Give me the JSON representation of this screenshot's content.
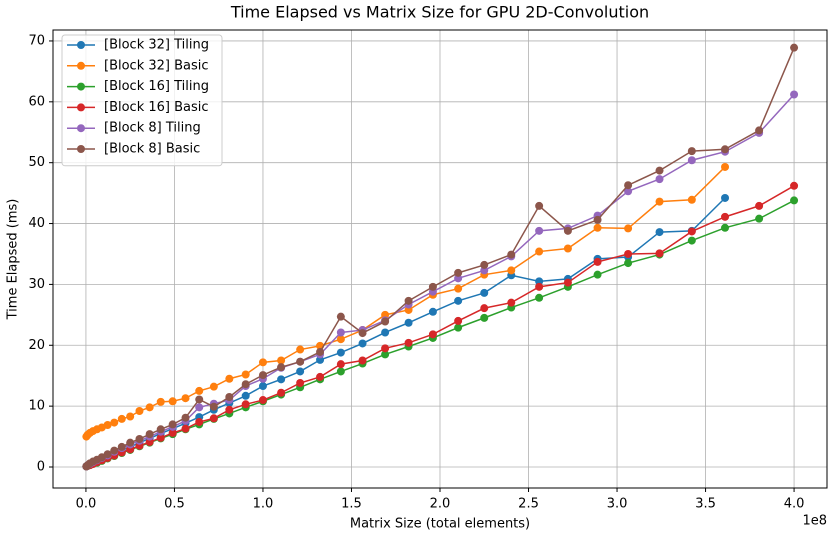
{
  "chart_data": {
    "type": "line",
    "title": "Time Elapsed vs Matrix Size for GPU 2D-Convolution",
    "x_label": "Matrix Size (total elements)",
    "x_offset_label": "1e8",
    "y_label": "Time Elapsed (ms)",
    "x": [
      0.0025,
      0.01,
      0.0225,
      0.04,
      0.0625,
      0.09,
      0.1225,
      0.16,
      0.2025,
      0.25,
      0.3025,
      0.36,
      0.4225,
      0.49,
      0.5625,
      0.64,
      0.7225,
      0.81,
      0.9025,
      1.0,
      1.1025,
      1.21,
      1.3225,
      1.44,
      1.5625,
      1.69,
      1.8225,
      1.96,
      2.1025,
      2.25,
      2.4025,
      2.56,
      2.7225,
      2.89,
      3.0625,
      3.24,
      3.4225,
      3.61,
      3.8025,
      4.0
    ],
    "series": [
      {
        "name": "[Block 32] Tiling",
        "color": "#1f77b4",
        "values": [
          0.1,
          0.2,
          0.4,
          0.6,
          0.9,
          1.2,
          1.6,
          2.1,
          2.7,
          3.3,
          4.0,
          4.7,
          5.5,
          6.3,
          7.2,
          8.2,
          9.4,
          10.5,
          11.7,
          13.3,
          14.4,
          15.7,
          17.6,
          18.8,
          20.3,
          22.1,
          23.7,
          25.5,
          27.3,
          28.6,
          31.5,
          30.5,
          30.9,
          34.2,
          34.5,
          38.6,
          38.8,
          44.2,
          null,
          null
        ]
      },
      {
        "name": "[Block 32] Basic",
        "color": "#ff7f0e",
        "values": [
          5.0,
          5.3,
          5.6,
          5.9,
          6.2,
          6.5,
          6.9,
          7.3,
          7.9,
          8.3,
          9.2,
          9.8,
          10.7,
          10.8,
          11.3,
          12.5,
          13.2,
          14.5,
          15.2,
          17.2,
          17.5,
          19.3,
          19.9,
          21.0,
          22.5,
          25.0,
          25.8,
          28.3,
          29.3,
          31.6,
          32.3,
          35.4,
          35.9,
          39.3,
          39.2,
          43.6,
          43.9,
          49.3,
          null,
          null
        ]
      },
      {
        "name": "[Block 16] Tiling",
        "color": "#2ca02c",
        "values": [
          0.1,
          0.2,
          0.3,
          0.5,
          0.7,
          1.0,
          1.4,
          1.8,
          2.3,
          2.8,
          3.4,
          4.0,
          4.7,
          5.4,
          6.2,
          7.0,
          7.9,
          8.8,
          9.8,
          10.8,
          11.9,
          13.1,
          14.4,
          15.7,
          17.0,
          18.5,
          19.8,
          21.2,
          22.9,
          24.5,
          26.2,
          27.8,
          29.6,
          31.6,
          33.5,
          34.9,
          37.2,
          39.3,
          40.8,
          43.8
        ]
      },
      {
        "name": "[Block 16] Basic",
        "color": "#d62728",
        "values": [
          0.1,
          0.2,
          0.3,
          0.5,
          0.8,
          1.1,
          1.5,
          1.9,
          2.4,
          2.9,
          3.5,
          4.1,
          4.8,
          5.6,
          6.3,
          7.4,
          8.0,
          9.4,
          10.3,
          11.0,
          12.2,
          13.8,
          14.8,
          16.9,
          17.5,
          19.5,
          20.4,
          21.8,
          24.0,
          26.1,
          27.0,
          29.6,
          30.3,
          33.7,
          35.0,
          35.1,
          38.7,
          41.1,
          42.9,
          46.2
        ]
      },
      {
        "name": "[Block 8] Tiling",
        "color": "#9467bd",
        "values": [
          0.1,
          0.3,
          0.5,
          0.8,
          1.1,
          1.5,
          1.9,
          2.5,
          3.1,
          3.7,
          4.3,
          5.0,
          5.8,
          6.6,
          7.6,
          9.8,
          10.4,
          11.0,
          13.3,
          14.5,
          16.3,
          17.3,
          18.5,
          22.1,
          22.5,
          24.1,
          26.7,
          28.8,
          31.0,
          32.3,
          34.6,
          38.8,
          39.2,
          41.3,
          45.3,
          47.3,
          50.4,
          51.8,
          54.9,
          61.2
        ]
      },
      {
        "name": "[Block 8] Basic",
        "color": "#8c564b",
        "values": [
          0.1,
          0.3,
          0.6,
          0.9,
          1.2,
          1.6,
          2.1,
          2.7,
          3.3,
          4.0,
          4.6,
          5.4,
          6.2,
          7.0,
          8.1,
          11.1,
          9.9,
          11.5,
          13.6,
          15.1,
          16.4,
          17.3,
          18.9,
          24.7,
          22.0,
          23.9,
          27.3,
          29.6,
          31.9,
          33.2,
          34.9,
          42.9,
          38.8,
          40.6,
          46.3,
          48.7,
          51.9,
          52.2,
          55.3,
          68.9
        ]
      }
    ],
    "xlim": [
      -0.186,
      4.186
    ],
    "ylim": [
      -3.45,
      71.8
    ],
    "xticks": [
      {
        "value": 0,
        "label": "0.0"
      },
      {
        "value": 0.5,
        "label": "0.5"
      },
      {
        "value": 1,
        "label": "1.0"
      },
      {
        "value": 1.5,
        "label": "1.5"
      },
      {
        "value": 2,
        "label": "2.0"
      },
      {
        "value": 2.5,
        "label": "2.5"
      },
      {
        "value": 3,
        "label": "3.0"
      },
      {
        "value": 3.5,
        "label": "3.5"
      },
      {
        "value": 4,
        "label": "4.0"
      }
    ],
    "yticks": [
      0,
      10,
      20,
      30,
      40,
      50,
      60,
      70
    ],
    "grid": true,
    "legend": "upper-left"
  }
}
